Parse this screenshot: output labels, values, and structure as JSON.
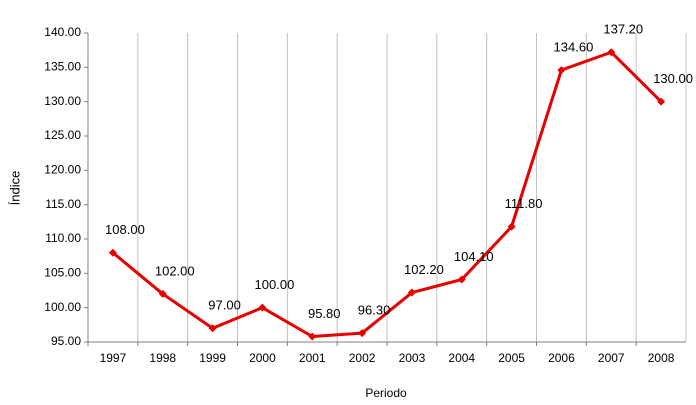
{
  "chart_data": {
    "type": "line",
    "x_label": "Periodo",
    "y_label": "Índice",
    "categories": [
      "1997",
      "1998",
      "1999",
      "2000",
      "2001",
      "2002",
      "2003",
      "2004",
      "2005",
      "2006",
      "2007",
      "2008"
    ],
    "series": [
      {
        "name": "Índice",
        "color": "#e60000",
        "values": [
          108,
          102,
          97,
          100,
          95.8,
          96.3,
          102.2,
          104.1,
          111.8,
          134.6,
          137.2,
          130
        ],
        "value_labels": [
          "108.00",
          "102.00",
          "97.00",
          "100.00",
          "95.80",
          "96.30",
          "102.20",
          "104.10",
          "111.80",
          "134.60",
          "137.20",
          "130.00"
        ]
      }
    ],
    "ylim": [
      95,
      140
    ],
    "yticks": [
      {
        "value": 95,
        "label": "95.00"
      },
      {
        "value": 100,
        "label": "100.00"
      },
      {
        "value": 105,
        "label": "105.00"
      },
      {
        "value": 110,
        "label": "110.00"
      },
      {
        "value": 115,
        "label": "115.00"
      },
      {
        "value": 120,
        "label": "120.00"
      },
      {
        "value": 125,
        "label": "125.00"
      },
      {
        "value": 130,
        "label": "130.00"
      },
      {
        "value": 135,
        "label": "135.00"
      },
      {
        "value": 140,
        "label": "140.00"
      }
    ],
    "grid": true
  }
}
